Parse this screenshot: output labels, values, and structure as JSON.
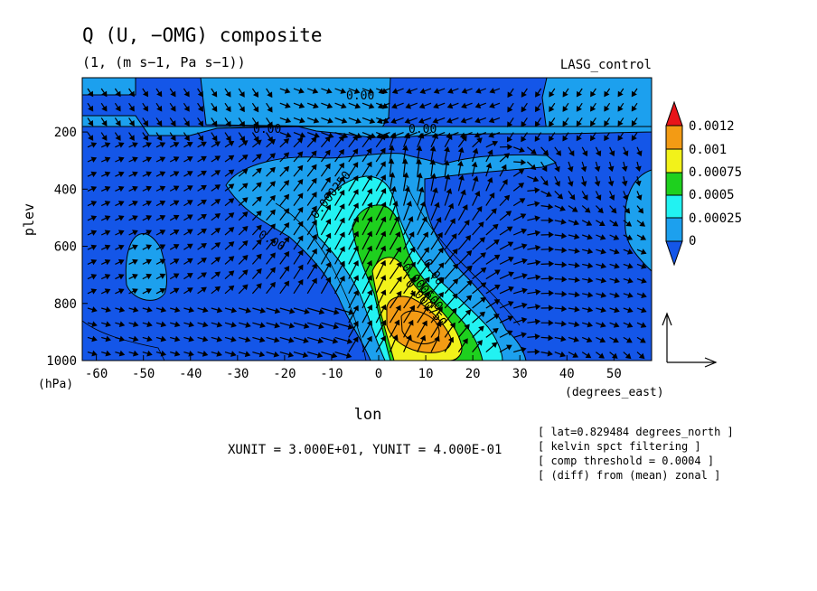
{
  "chart_data": {
    "type": "heatmap",
    "title": "Q (U, −OMG) composite",
    "subtitle": "(1, (m s−1, Pa s−1))",
    "experiment": "LASG_control",
    "xlabel": "lon",
    "x_unit_label": "(degrees_east)",
    "ylabel": "plev",
    "y_unit_label": "(hPa)",
    "xlim": [
      -63,
      58
    ],
    "ylim": [
      1000,
      10
    ],
    "y_inverted": true,
    "x_ticks": [
      -60,
      -50,
      -40,
      -30,
      -20,
      -10,
      0,
      10,
      20,
      30,
      40,
      50
    ],
    "y_ticks": [
      200,
      400,
      600,
      800,
      1000
    ],
    "colorbar": {
      "levels": [
        "0.0012",
        "0.001",
        "0.00075",
        "0.0005",
        "0.00025",
        "0"
      ],
      "colors": [
        "#e8141a",
        "#f39b14",
        "#f2f21a",
        "#1ed01e",
        "#22f2f2",
        "#1ca0ee",
        "#1456e8"
      ]
    },
    "contour_labels": [
      "0.00",
      "0.00",
      "0.00",
      "0.00",
      "0.00",
      "0.000250",
      "0.000500",
      "0.000750"
    ],
    "vector_units": "XUNIT = 3.000E+01, YUNIT = 4.000E-01",
    "notes": [
      "[ lat=0.829484 degrees_north ]",
      "[ kelvin spct filtering ]",
      "[ comp threshold = 0.0004 ]",
      "[ (diff) from (mean) zonal ]"
    ],
    "anomaly_peak": {
      "lon": 7,
      "plev": 850,
      "value_range": [
        "0.001",
        "0.0012"
      ]
    }
  }
}
